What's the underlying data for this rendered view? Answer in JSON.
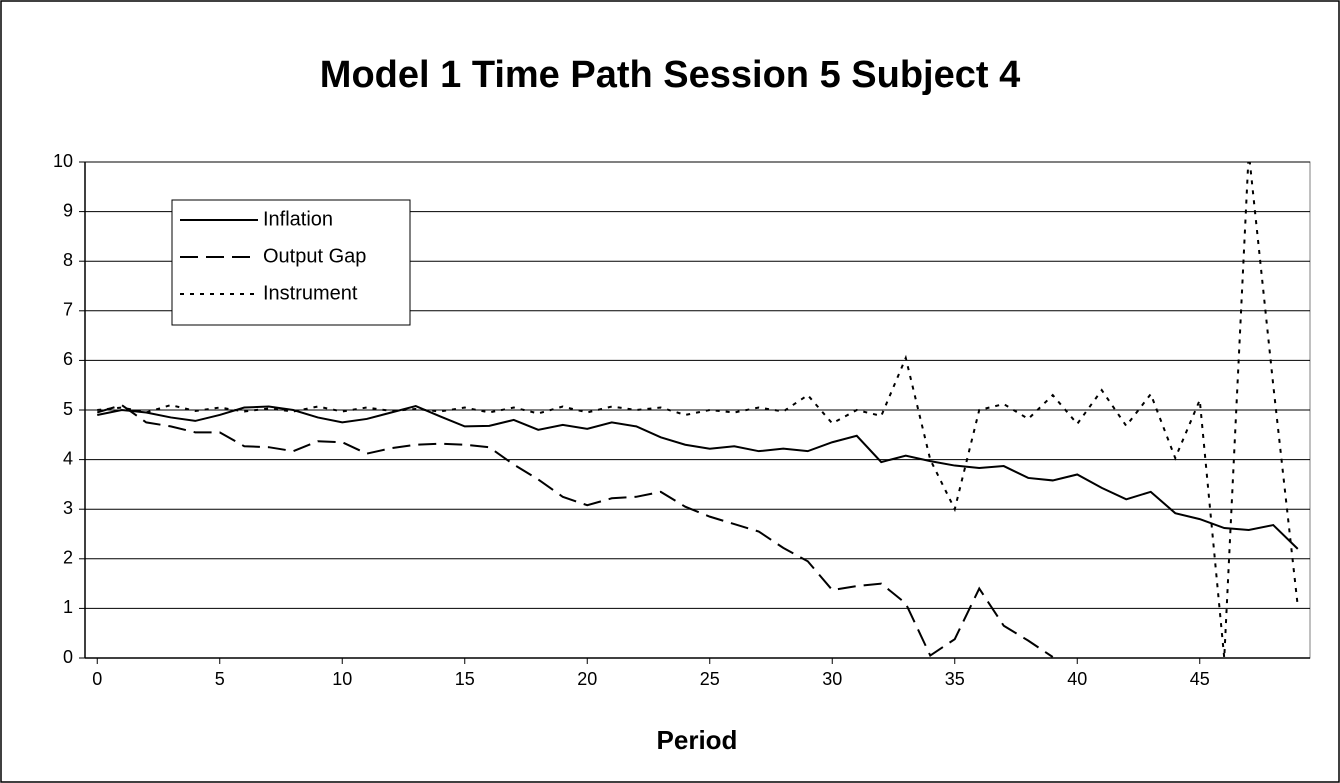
{
  "chart_data": {
    "type": "line",
    "title": "Model 1 Time Path Session 5 Subject 4",
    "xlabel": "Period",
    "x": [
      0,
      1,
      2,
      3,
      4,
      5,
      6,
      7,
      8,
      9,
      10,
      11,
      12,
      13,
      14,
      15,
      16,
      17,
      18,
      19,
      20,
      21,
      22,
      23,
      24,
      25,
      26,
      27,
      28,
      29,
      30,
      31,
      32,
      33,
      34,
      35,
      36,
      37,
      38,
      39,
      40,
      41,
      42,
      43,
      44,
      45,
      46,
      47,
      48,
      49
    ],
    "series": [
      {
        "name": "Inflation",
        "color": "#000000",
        "style": "solid",
        "values": [
          4.9,
          5.0,
          4.95,
          4.85,
          4.78,
          4.9,
          5.05,
          5.07,
          5.0,
          4.85,
          4.75,
          4.82,
          4.95,
          5.08,
          4.87,
          4.67,
          4.68,
          4.8,
          4.6,
          4.7,
          4.62,
          4.75,
          4.67,
          4.45,
          4.3,
          4.22,
          4.27,
          4.17,
          4.22,
          4.17,
          4.35,
          4.48,
          3.95,
          4.08,
          3.97,
          3.88,
          3.83,
          3.87,
          3.63,
          3.58,
          3.7,
          3.43,
          3.2,
          3.35,
          2.92,
          2.8,
          2.62,
          2.58,
          2.68,
          2.2
        ]
      },
      {
        "name": "Output Gap",
        "color": "#000000",
        "style": "dashed",
        "values": [
          4.95,
          5.1,
          4.75,
          4.67,
          4.55,
          4.55,
          4.27,
          4.25,
          4.17,
          4.37,
          4.35,
          4.12,
          4.23,
          4.3,
          4.32,
          4.3,
          4.25,
          3.9,
          3.6,
          3.25,
          3.08,
          3.22,
          3.25,
          3.35,
          3.05,
          2.85,
          2.7,
          2.55,
          2.22,
          1.95,
          1.37,
          1.45,
          1.5,
          1.1,
          0.05,
          0.38,
          1.4,
          0.65,
          0.35,
          0.02,
          null,
          null,
          null,
          null,
          null,
          null,
          null,
          null,
          null,
          null
        ]
      },
      {
        "name": "Instrument",
        "color": "#000000",
        "style": "dotted",
        "values": [
          5.0,
          5.05,
          4.95,
          5.1,
          4.98,
          5.05,
          4.97,
          5.03,
          4.97,
          5.07,
          4.97,
          5.05,
          4.98,
          5.02,
          4.97,
          5.05,
          4.95,
          5.05,
          4.93,
          5.07,
          4.95,
          5.07,
          5.0,
          5.05,
          4.9,
          5.0,
          4.95,
          5.05,
          4.97,
          5.3,
          4.73,
          5.0,
          4.88,
          6.05,
          4.0,
          3.0,
          5.0,
          5.12,
          4.82,
          5.3,
          4.72,
          5.4,
          4.68,
          5.32,
          4.03,
          5.2,
          0,
          10.2,
          5.5,
          1.05
        ]
      }
    ],
    "xlim": [
      -0.5,
      49.5
    ],
    "xticks": [
      0,
      5,
      10,
      15,
      20,
      25,
      30,
      35,
      40,
      45
    ],
    "ylim": [
      0,
      10
    ],
    "yticks": [
      0,
      1,
      2,
      3,
      4,
      5,
      6,
      7,
      8,
      9,
      10
    ],
    "grid": true,
    "legend": "upper left"
  }
}
